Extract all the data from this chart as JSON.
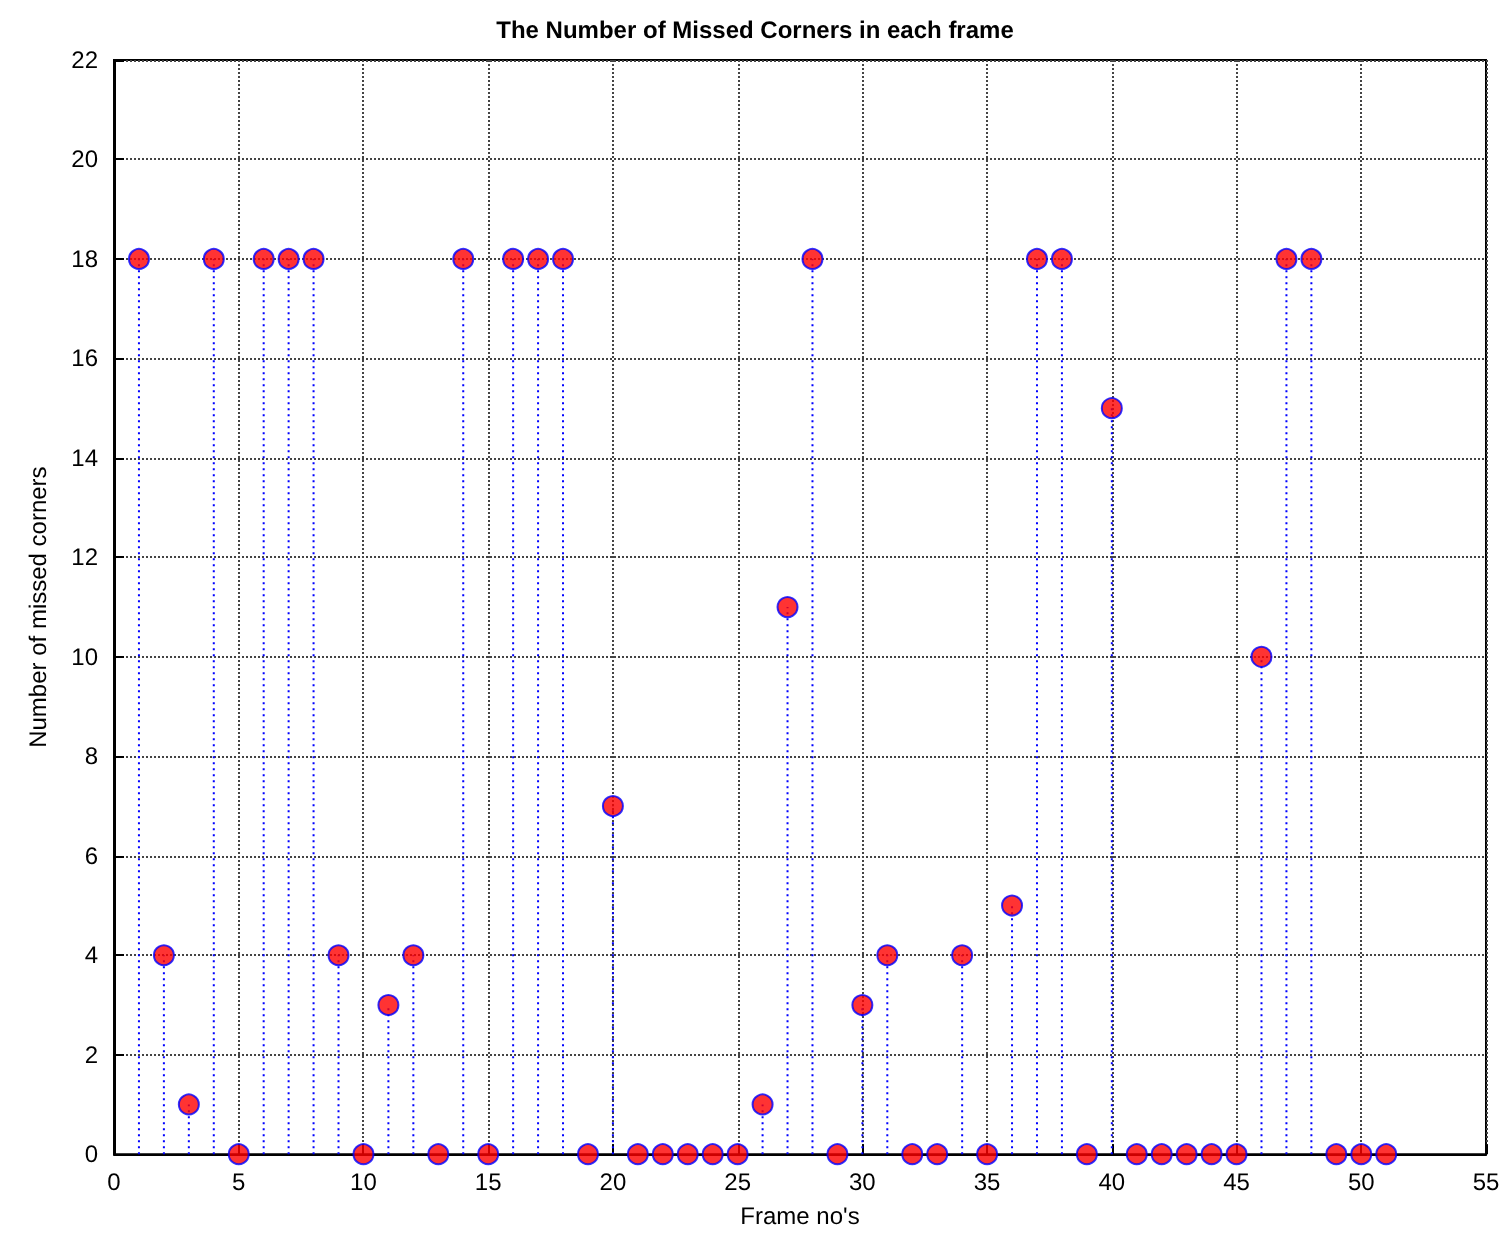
{
  "chart_data": {
    "type": "lollipop",
    "title": "The Number of Missed Corners in each frame",
    "xlabel": "Frame no's",
    "ylabel": "Number of missed corners",
    "x": [
      1,
      2,
      3,
      4,
      5,
      6,
      7,
      8,
      9,
      10,
      11,
      12,
      13,
      14,
      15,
      16,
      17,
      18,
      19,
      20,
      21,
      22,
      23,
      24,
      25,
      26,
      27,
      28,
      29,
      30,
      31,
      32,
      33,
      34,
      35,
      36,
      37,
      38,
      39,
      40,
      41,
      42,
      43,
      44,
      45,
      46,
      47,
      48,
      49,
      50,
      51
    ],
    "values": [
      18,
      4,
      1,
      18,
      0,
      18,
      18,
      18,
      4,
      0,
      3,
      4,
      0,
      18,
      0,
      18,
      18,
      18,
      0,
      7,
      0,
      0,
      0,
      0,
      0,
      1,
      11,
      18,
      0,
      3,
      4,
      0,
      0,
      4,
      0,
      5,
      18,
      18,
      0,
      15,
      0,
      0,
      0,
      0,
      0,
      10,
      18,
      18,
      0,
      0,
      0
    ],
    "color": "#ff0000",
    "xlim": [
      0,
      55
    ],
    "xticks": [
      0,
      5,
      10,
      15,
      20,
      25,
      30,
      35,
      40,
      45,
      50,
      55
    ],
    "ylim": [
      0,
      22
    ],
    "yticks": [
      0,
      2,
      4,
      6,
      8,
      10,
      12,
      14,
      16,
      18,
      20,
      22
    ],
    "grid": true,
    "marker": "circle",
    "line_style": "dotted"
  }
}
